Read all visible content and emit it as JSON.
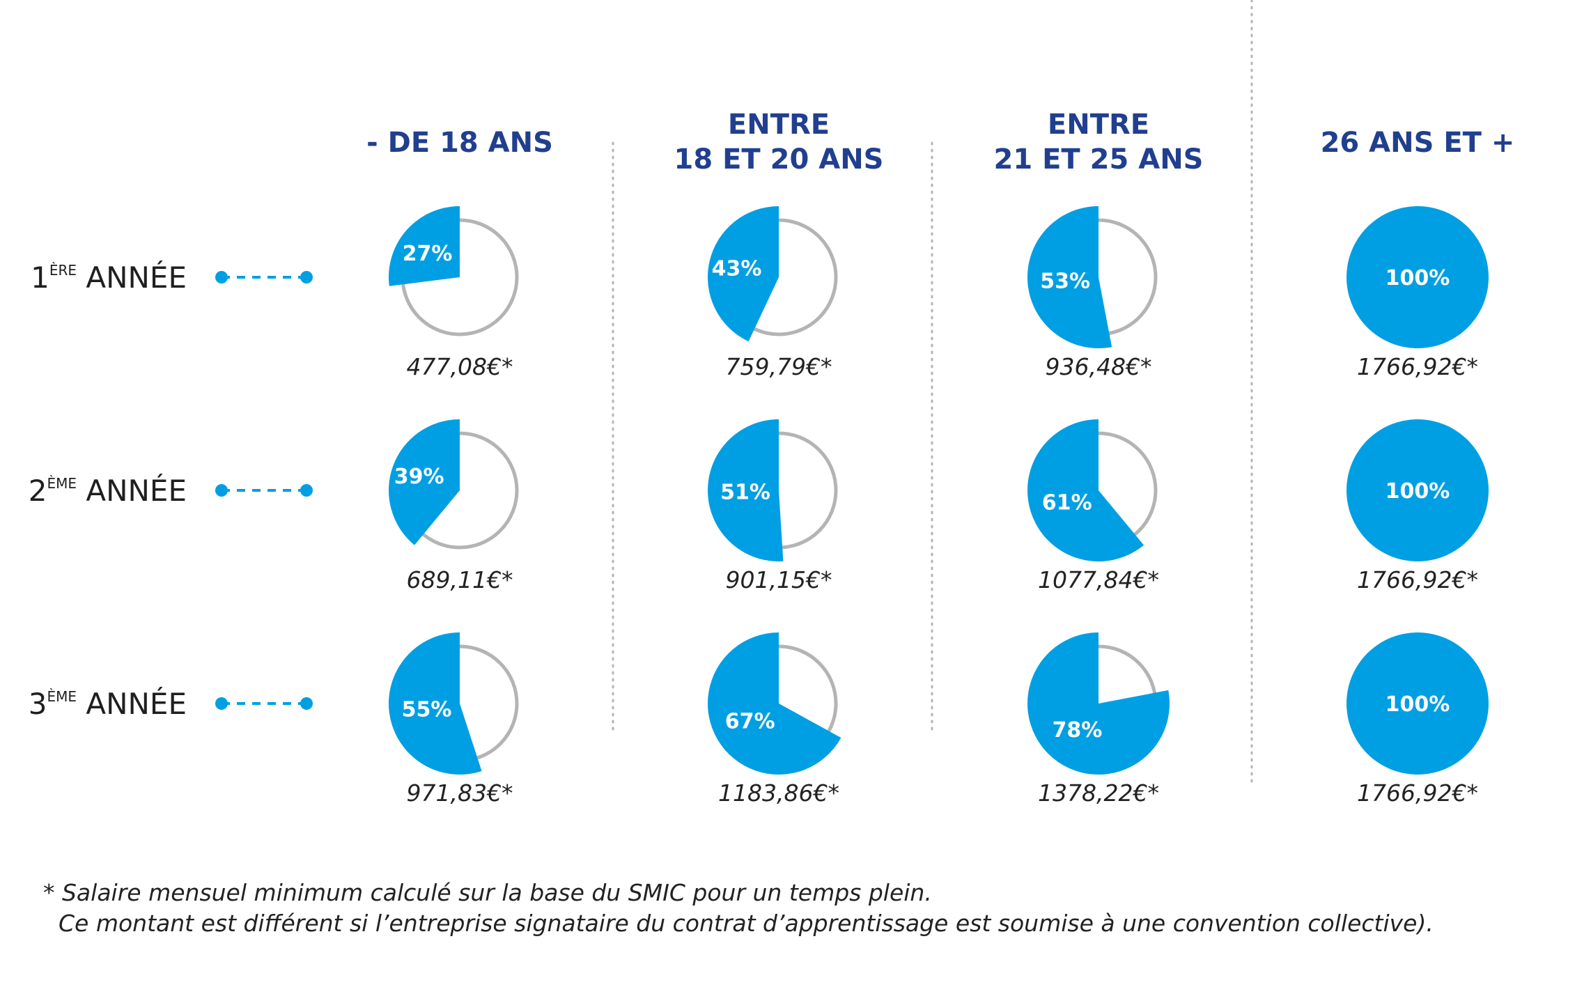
{
  "chart_data": {
    "type": "pie",
    "colors": {
      "fill": "#009fe3",
      "outline": "#b4b4b4",
      "title": "#213f8f"
    },
    "columns": [
      {
        "title_lines": [
          "- DE 18 ANS"
        ]
      },
      {
        "title_lines": [
          "ENTRE",
          "18 ET 20 ANS"
        ]
      },
      {
        "title_lines": [
          "ENTRE",
          "21 ET 25 ANS"
        ]
      },
      {
        "title_lines": [
          "26 ANS ET +"
        ]
      }
    ],
    "rows": [
      {
        "num": "1",
        "sup": "ÈRE",
        "word": "ANNÉE"
      },
      {
        "num": "2",
        "sup": "ÈME",
        "word": "ANNÉE"
      },
      {
        "num": "3",
        "sup": "ÈME",
        "word": "ANNÉE"
      }
    ],
    "cells": [
      [
        {
          "percent": 27,
          "label": "27%",
          "amount": "477,08€*"
        },
        {
          "percent": 43,
          "label": "43%",
          "amount": "759,79€*"
        },
        {
          "percent": 53,
          "label": "53%",
          "amount": "936,48€*"
        },
        {
          "percent": 100,
          "label": "100%",
          "amount": "1766,92€*"
        }
      ],
      [
        {
          "percent": 39,
          "label": "39%",
          "amount": "689,11€*"
        },
        {
          "percent": 51,
          "label": "51%",
          "amount": "901,15€*"
        },
        {
          "percent": 61,
          "label": "61%",
          "amount": "1077,84€*"
        },
        {
          "percent": 100,
          "label": "100%",
          "amount": "1766,92€*"
        }
      ],
      [
        {
          "percent": 55,
          "label": "55%",
          "amount": "971,83€*"
        },
        {
          "percent": 67,
          "label": "67%",
          "amount": "1183,86€*"
        },
        {
          "percent": 78,
          "label": "78%",
          "amount": "1378,22€*"
        },
        {
          "percent": 100,
          "label": "100%",
          "amount": "1766,92€*"
        }
      ]
    ]
  },
  "footnote": {
    "line1": "* Salaire mensuel minimum calculé sur la base du SMIC pour un temps plein.",
    "line2": "Ce montant est différent si l’entreprise signataire du contrat d’apprentissage est soumise à une convention collective)."
  }
}
